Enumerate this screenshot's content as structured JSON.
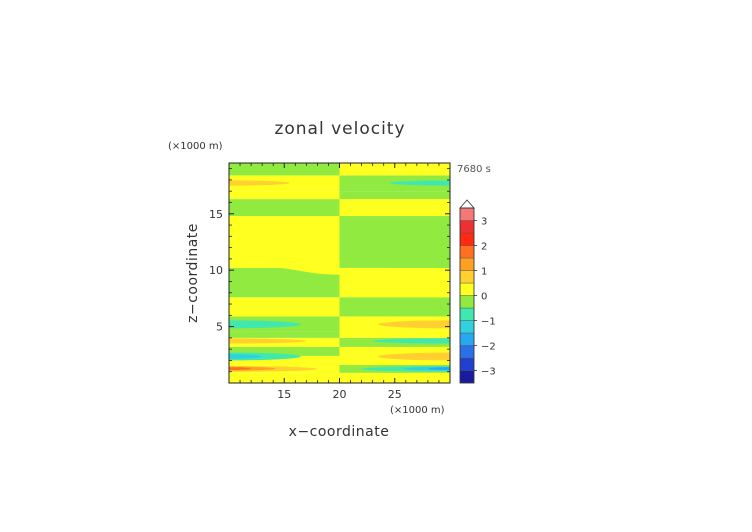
{
  "chart_data": {
    "type": "heatmap",
    "title": "zonal velocity",
    "time_label": "7680 s",
    "xlabel": "x−coordinate",
    "ylabel": "z−coordinate",
    "x_unit": "(×1000 m)",
    "y_unit": "(×1000 m)",
    "xlim": [
      10,
      30
    ],
    "ylim": [
      0,
      19.5
    ],
    "x_ticks": [
      15,
      20,
      25
    ],
    "y_ticks": [
      5,
      10,
      15
    ],
    "x_tick_labels": [
      "15",
      "20",
      "25"
    ],
    "y_tick_labels": [
      "5",
      "10",
      "15"
    ],
    "colorbar": {
      "levels": [
        -3.5,
        -3,
        -2.5,
        -2,
        -1.5,
        -1,
        -0.5,
        0,
        0.5,
        1,
        1.5,
        2,
        2.5,
        3,
        3.5
      ],
      "colors": [
        "#1a1aa0",
        "#2040d0",
        "#2a70e8",
        "#28a8f0",
        "#30d0e0",
        "#40e8b0",
        "#90ea40",
        "#ffff20",
        "#ffd030",
        "#ffa020",
        "#ff7020",
        "#ff2a10",
        "#f03030",
        "#f47878",
        "#f4b0b0"
      ],
      "tick_values": [
        -3,
        -2,
        -1,
        0,
        1,
        2,
        3
      ],
      "tick_labels": [
        "−3",
        "−2",
        "−1",
        "0",
        "1",
        "2",
        "3"
      ],
      "extend": "max"
    },
    "left_half": {
      "x_range": [
        10,
        20
      ],
      "bands": [
        {
          "z": [
            0,
            0.9
          ],
          "value": 0.25
        },
        {
          "z": [
            0.9,
            1.6
          ],
          "value": 0.3
        },
        {
          "z": [
            1.6,
            2.4
          ],
          "value": 0.3
        },
        {
          "z": [
            2.4,
            3.2
          ],
          "value": -0.25
        },
        {
          "z": [
            3.2,
            4.0
          ],
          "value": 0.25
        },
        {
          "z": [
            4.0,
            4.6
          ],
          "value": -0.25
        },
        {
          "z": [
            4.6,
            5.9
          ],
          "value": -0.25
        },
        {
          "z": [
            5.9,
            7.6
          ],
          "value": 0.25
        },
        {
          "z": [
            7.6,
            10.2
          ],
          "value": -0.25
        },
        {
          "z": [
            10.2,
            14.8
          ],
          "value": 0.25
        },
        {
          "z": [
            14.8,
            16.3
          ],
          "value": -0.25
        },
        {
          "z": [
            16.3,
            17.0
          ],
          "value": 0.25
        },
        {
          "z": [
            17.0,
            18.4
          ],
          "value": 0.25
        },
        {
          "z": [
            18.4,
            19.5
          ],
          "value": -0.25
        }
      ],
      "blobs": [
        {
          "x": [
            10,
            18.0
          ],
          "z": [
            1.0,
            1.5
          ],
          "value": 0.75
        },
        {
          "x": [
            10,
            14.2
          ],
          "z": [
            1.1,
            1.45
          ],
          "value": 1.25
        },
        {
          "x": [
            10,
            12.0
          ],
          "z": [
            1.15,
            1.4
          ],
          "value": 1.75
        },
        {
          "x": [
            10,
            16.5
          ],
          "z": [
            2.0,
            2.7
          ],
          "value": -0.75
        },
        {
          "x": [
            10,
            13.0
          ],
          "z": [
            2.15,
            2.55
          ],
          "value": -1.25
        },
        {
          "x": [
            10,
            17.0
          ],
          "z": [
            3.5,
            3.95
          ],
          "value": 0.75
        },
        {
          "x": [
            10,
            16.5
          ],
          "z": [
            4.85,
            5.55
          ],
          "value": -0.75
        },
        {
          "x": [
            10,
            15.5
          ],
          "z": [
            17.5,
            17.95
          ],
          "value": 0.75
        }
      ]
    },
    "right_half": {
      "x_range": [
        20,
        30
      ],
      "bands": [
        {
          "z": [
            0,
            0.9
          ],
          "value": 0.25
        },
        {
          "z": [
            0.9,
            1.6
          ],
          "value": -0.25
        },
        {
          "z": [
            1.6,
            2.4
          ],
          "value": 0.25
        },
        {
          "z": [
            2.4,
            3.2
          ],
          "value": 0.25
        },
        {
          "z": [
            3.2,
            4.0
          ],
          "value": -0.25
        },
        {
          "z": [
            4.0,
            4.6
          ],
          "value": 0.25
        },
        {
          "z": [
            4.6,
            5.9
          ],
          "value": 0.25
        },
        {
          "z": [
            5.9,
            7.6
          ],
          "value": -0.25
        },
        {
          "z": [
            7.6,
            10.2
          ],
          "value": 0.25
        },
        {
          "z": [
            10.2,
            14.8
          ],
          "value": -0.25
        },
        {
          "z": [
            14.8,
            16.3
          ],
          "value": 0.25
        },
        {
          "z": [
            16.3,
            17.0
          ],
          "value": -0.25
        },
        {
          "z": [
            17.0,
            18.4
          ],
          "value": -0.25
        },
        {
          "z": [
            18.4,
            19.5
          ],
          "value": 0.25
        }
      ],
      "blobs": [
        {
          "x": [
            22.0,
            30
          ],
          "z": [
            1.0,
            1.5
          ],
          "value": -0.75
        },
        {
          "x": [
            25.8,
            30
          ],
          "z": [
            1.1,
            1.45
          ],
          "value": -1.25
        },
        {
          "x": [
            28.0,
            30
          ],
          "z": [
            1.15,
            1.4
          ],
          "value": -1.75
        },
        {
          "x": [
            23.5,
            30
          ],
          "z": [
            2.0,
            2.7
          ],
          "value": 0.75
        },
        {
          "x": [
            23.0,
            30
          ],
          "z": [
            3.5,
            3.95
          ],
          "value": -0.75
        },
        {
          "x": [
            23.5,
            30
          ],
          "z": [
            4.85,
            5.55
          ],
          "value": 0.75
        },
        {
          "x": [
            24.5,
            30
          ],
          "z": [
            17.5,
            17.95
          ],
          "value": -0.75
        }
      ],
      "wavy_bands": [
        {
          "z_edge": 10.2,
          "z_edge_end": 11.0,
          "value": -0.25
        }
      ]
    },
    "left_bulge": {
      "x": [
        14,
        20
      ],
      "z": [
        9.6,
        10.2
      ],
      "value": 0.25
    }
  }
}
